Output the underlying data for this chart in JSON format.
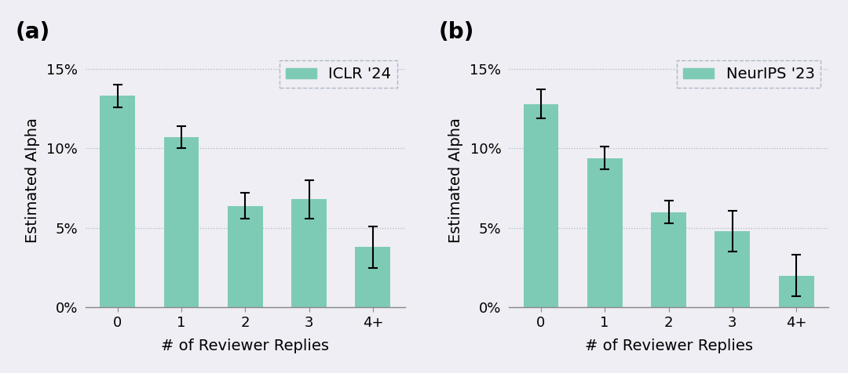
{
  "panel_a": {
    "label": "(a)",
    "legend": "ICLR '24",
    "categories": [
      "0",
      "1",
      "2",
      "3",
      "4+"
    ],
    "values": [
      0.133,
      0.107,
      0.064,
      0.068,
      0.038
    ],
    "errors": [
      0.007,
      0.007,
      0.008,
      0.012,
      0.013
    ],
    "bar_color": "#7ecbb5",
    "ylabel": "Estimated Alpha",
    "xlabel": "# of Reviewer Replies",
    "ylim": [
      0,
      0.16
    ],
    "yticks": [
      0.0,
      0.05,
      0.1,
      0.15
    ]
  },
  "panel_b": {
    "label": "(b)",
    "legend": "NeurIPS '23",
    "categories": [
      "0",
      "1",
      "2",
      "3",
      "4+"
    ],
    "values": [
      0.128,
      0.094,
      0.06,
      0.048,
      0.02
    ],
    "errors": [
      0.009,
      0.007,
      0.007,
      0.013,
      0.013
    ],
    "bar_color": "#7ecbb5",
    "ylabel": "Estimated Alpha",
    "xlabel": "# of Reviewer Replies",
    "ylim": [
      0,
      0.16
    ],
    "yticks": [
      0.0,
      0.05,
      0.1,
      0.15
    ]
  },
  "background_color": "#eeeef4",
  "plot_bg_color": "#eeeef4",
  "grid_color": "#b0b8c8",
  "label_fontsize": 14,
  "tick_fontsize": 13,
  "panel_label_fontsize": 20,
  "legend_fontsize": 14
}
